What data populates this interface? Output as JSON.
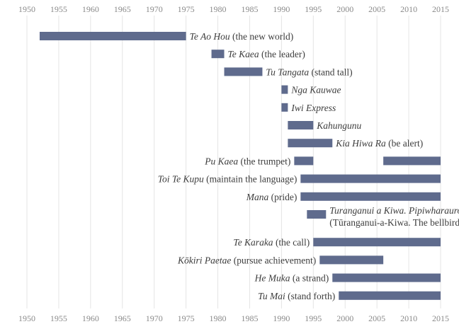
{
  "chart_data": {
    "type": "bar",
    "orientation": "horizontal-timeline",
    "title": "",
    "xlabel": "",
    "ylabel": "",
    "xlim": [
      1950,
      2015
    ],
    "x_ticks": [
      1950,
      1955,
      1960,
      1965,
      1970,
      1975,
      1980,
      1985,
      1990,
      1995,
      2000,
      2005,
      2010,
      2015
    ],
    "grid": "vertical",
    "bar_color": "#5f6b8d",
    "rows": [
      {
        "name": "Te Ao Hou",
        "gloss": "(the new world)",
        "segments": [
          [
            1952,
            1975
          ]
        ]
      },
      {
        "name": "Te Kaea",
        "gloss": "(the leader)",
        "segments": [
          [
            1979,
            1981
          ]
        ]
      },
      {
        "name": "Tu Tangata",
        "gloss": "(stand tall)",
        "segments": [
          [
            1981,
            1987
          ]
        ]
      },
      {
        "name": "Nga Kauwae",
        "gloss": "",
        "segments": [
          [
            1990,
            1991
          ]
        ]
      },
      {
        "name": "Iwi Express",
        "gloss": "",
        "segments": [
          [
            1990,
            1991
          ]
        ]
      },
      {
        "name": "Kahungunu",
        "gloss": "",
        "segments": [
          [
            1991,
            1995
          ]
        ]
      },
      {
        "name": "Kia Hiwa Ra",
        "gloss": "(be alert)",
        "segments": [
          [
            1991,
            1998
          ]
        ]
      },
      {
        "name": "Pu Kaea",
        "gloss": "(the trumpet)",
        "segments": [
          [
            1992,
            1995
          ],
          [
            2006,
            2015
          ]
        ]
      },
      {
        "name": "Toi Te Kupu",
        "gloss": "(maintain the language)",
        "segments": [
          [
            1993,
            2015
          ]
        ]
      },
      {
        "name": "Mana",
        "gloss": "(pride)",
        "segments": [
          [
            1993,
            2015
          ]
        ]
      },
      {
        "name": "Turanganui a Kiwa. Pipiwharauroa",
        "gloss": "(Tūranganui-a-Kiwa. The bellbird)",
        "two_line": true,
        "segments": [
          [
            1994,
            1997
          ]
        ]
      },
      {
        "name": "Te Karaka",
        "gloss": "(the call)",
        "segments": [
          [
            1995,
            2015
          ]
        ]
      },
      {
        "name": "Kōkiri Paetae",
        "gloss": "(pursue achievement)",
        "segments": [
          [
            1996,
            2006
          ]
        ]
      },
      {
        "name": "He Muka",
        "gloss": "(a strand)",
        "segments": [
          [
            1998,
            2015
          ]
        ]
      },
      {
        "name": "Tu Mai",
        "gloss": "(stand forth)",
        "segments": [
          [
            1999,
            2015
          ]
        ]
      }
    ]
  }
}
